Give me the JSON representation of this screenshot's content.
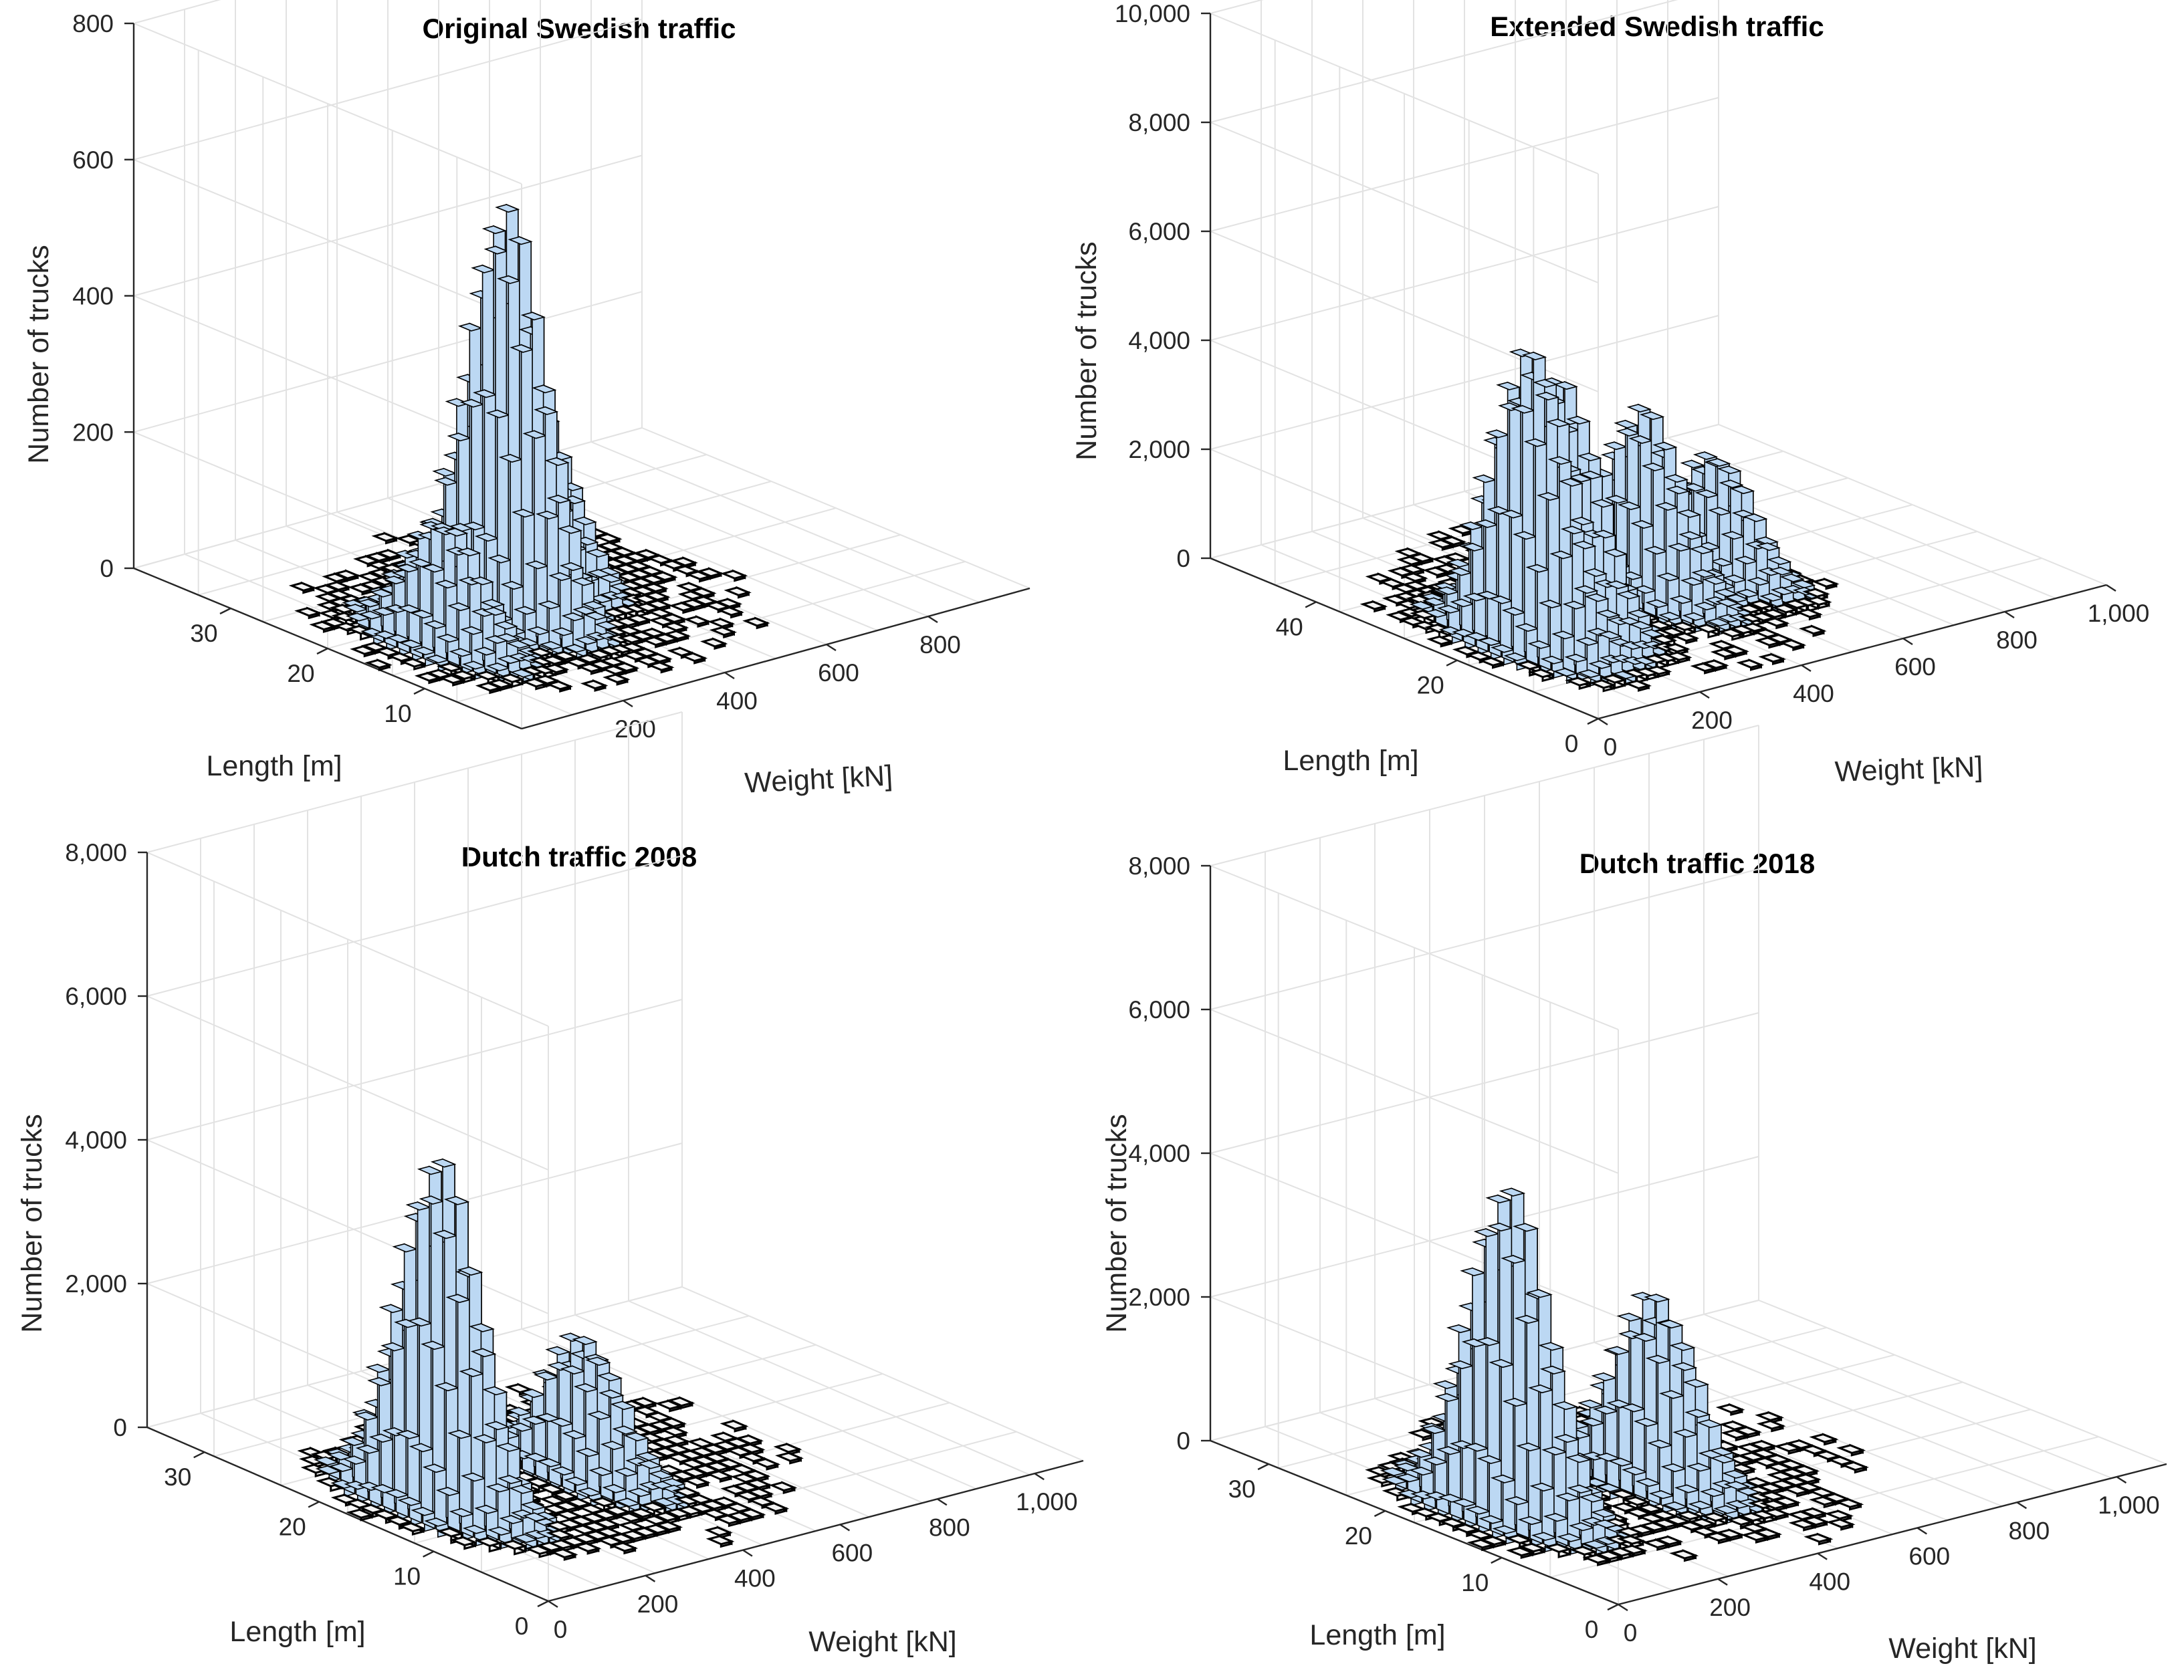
{
  "chart_data": [
    {
      "type": "bar3d-histogram",
      "title": "Original Swedish traffic",
      "xlabel": "Weight [kN]",
      "ylabel": "Length [m]",
      "zlabel": "Number of trucks",
      "xticks": [
        "200",
        "400",
        "600",
        "800"
      ],
      "yticks": [
        "10",
        "20",
        "30"
      ],
      "zticks": [
        "0",
        "200",
        "400",
        "600",
        "800"
      ],
      "xlim": [
        0,
        1000
      ],
      "ylim": [
        0,
        40
      ],
      "zlim": [
        0,
        800
      ],
      "peaks": [
        {
          "weight": 150,
          "length": 16,
          "count": 180
        },
        {
          "weight": 310,
          "length": 18,
          "count": 600
        },
        {
          "weight": 440,
          "length": 22,
          "count": 260
        }
      ]
    },
    {
      "type": "bar3d-histogram",
      "title": "Extended Swedish traffic",
      "xlabel": "Weight [kN]",
      "ylabel": "Length [m]",
      "zlabel": "Number of trucks",
      "xticks": [
        "0",
        "200",
        "400",
        "600",
        "800",
        "1,000"
      ],
      "yticks": [
        "0",
        "20",
        "40"
      ],
      "zticks": [
        "0",
        "2,000",
        "4,000",
        "6,000",
        "8,000",
        "10,000"
      ],
      "xlim": [
        0,
        1000
      ],
      "ylim": [
        0,
        55
      ],
      "zlim": [
        0,
        10000
      ],
      "peaks": [
        {
          "weight": 140,
          "length": 20,
          "count": 5200
        },
        {
          "weight": 230,
          "length": 22,
          "count": 4300
        },
        {
          "weight": 420,
          "length": 24,
          "count": 3400
        },
        {
          "weight": 560,
          "length": 24,
          "count": 2200
        }
      ]
    },
    {
      "type": "bar3d-histogram",
      "title": "Dutch traffic 2008",
      "xlabel": "Weight [kN]",
      "ylabel": "Length [m]",
      "zlabel": "Number of trucks",
      "xticks": [
        "0",
        "200",
        "400",
        "600",
        "800",
        "1,000"
      ],
      "yticks": [
        "0",
        "10",
        "20",
        "30"
      ],
      "zticks": [
        "0",
        "2,000",
        "4,000",
        "6,000",
        "8,000"
      ],
      "xlim": [
        0,
        1100
      ],
      "ylim": [
        0,
        35
      ],
      "zlim": [
        0,
        8000
      ],
      "peaks": [
        {
          "weight": 150,
          "length": 16,
          "count": 4800
        },
        {
          "weight": 420,
          "length": 15,
          "count": 1900
        }
      ]
    },
    {
      "type": "bar3d-histogram",
      "title": "Dutch traffic 2018",
      "xlabel": "Weight [kN]",
      "ylabel": "Length [m]",
      "zlabel": "Number of trucks",
      "xticks": [
        "0",
        "200",
        "400",
        "600",
        "800",
        "1,000"
      ],
      "yticks": [
        "0",
        "10",
        "20",
        "30"
      ],
      "zticks": [
        "0",
        "2,000",
        "4,000",
        "6,000",
        "8,000"
      ],
      "xlim": [
        0,
        1100
      ],
      "ylim": [
        0,
        35
      ],
      "zlim": [
        0,
        8000
      ],
      "peaks": [
        {
          "weight": 150,
          "length": 16,
          "count": 4500
        },
        {
          "weight": 420,
          "length": 15,
          "count": 2600
        }
      ]
    }
  ]
}
